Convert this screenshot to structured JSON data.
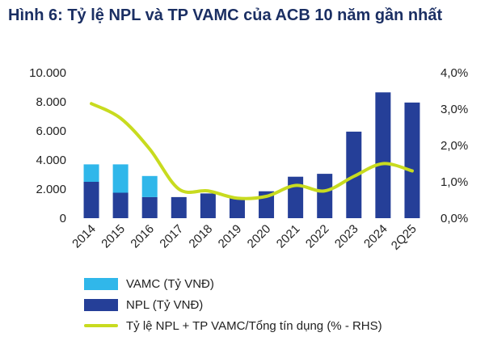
{
  "title": "Hình 6: Tỷ lệ NPL và TP VAMC của ACB 10 năm gần nhất",
  "colors": {
    "vamc": "#30b7ea",
    "npl": "#253f98",
    "line": "#c8db1f"
  },
  "chart_data": {
    "type": "bar",
    "stacked": true,
    "categories": [
      "2014",
      "2015",
      "2016",
      "2017",
      "2018",
      "2019",
      "2020",
      "2021",
      "2022",
      "2023",
      "2024",
      "2Q25"
    ],
    "series": [
      {
        "name": "NPL (Tỷ VNĐ)",
        "axis": "left",
        "values": [
          2500,
          1750,
          1450,
          1450,
          1700,
          1400,
          1850,
          2850,
          3050,
          5950,
          8650,
          7950
        ]
      },
      {
        "name": "VAMC (Tỷ VNĐ)",
        "axis": "left",
        "values": [
          1200,
          1950,
          1450,
          0,
          0,
          0,
          0,
          0,
          0,
          0,
          0,
          0
        ]
      },
      {
        "name": "Tỷ lệ NPL + TP VAMC/Tổng tín dụng (% - RHS)",
        "type": "line",
        "axis": "right",
        "values": [
          3.15,
          2.75,
          1.9,
          0.8,
          0.75,
          0.55,
          0.6,
          0.9,
          0.75,
          1.15,
          1.5,
          1.3
        ]
      }
    ],
    "left_axis": {
      "ylim": [
        0,
        10000
      ],
      "ticks": [
        "0",
        "2.000",
        "4.000",
        "6.000",
        "8.000",
        "10.000"
      ]
    },
    "right_axis": {
      "ylim": [
        0,
        4.0
      ],
      "ticks": [
        "0,0%",
        "1,0%",
        "2,0%",
        "3,0%",
        "4,0%"
      ]
    },
    "legend": [
      "VAMC (Tỷ VNĐ)",
      "NPL (Tỷ VNĐ)",
      "Tỷ lệ NPL + TP VAMC/Tổng tín dụng (% - RHS)"
    ],
    "legend_position": "bottom-left"
  }
}
